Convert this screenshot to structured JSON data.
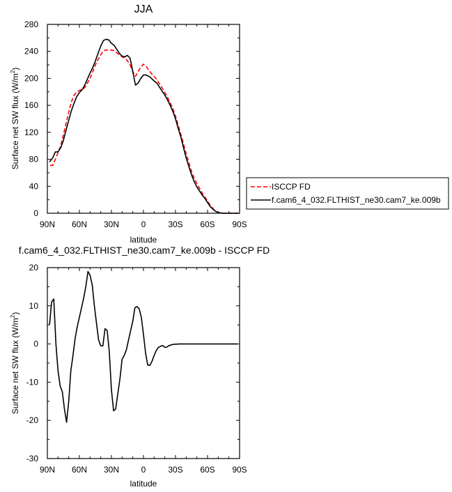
{
  "chart_data": [
    {
      "type": "line",
      "title": "JJA",
      "xlabel": "latitude",
      "ylabel": "Surface net SW flux (W/m2)",
      "ylabel_main": "Surface net SW flux (W/m",
      "ylabel_sup": "2",
      "ylabel_close": ")",
      "xlim": [
        90,
        -90
      ],
      "ylim": [
        0,
        280
      ],
      "x_ticks": [
        90,
        60,
        30,
        0,
        -30,
        -60,
        -90
      ],
      "x_tick_labels": [
        "90N",
        "60N",
        "30N",
        "0",
        "30S",
        "60S",
        "90S"
      ],
      "y_ticks": [
        0,
        40,
        80,
        120,
        160,
        200,
        240,
        280
      ],
      "y_tick_labels": [
        "0",
        "40",
        "80",
        "120",
        "160",
        "200",
        "240",
        "280"
      ],
      "grid": false,
      "legend_position": "right",
      "series": [
        {
          "name": "ISCCP FD",
          "color": "#ff0000",
          "dash": "dashed",
          "points": [
            [
              87.5,
              71
            ],
            [
              85,
              71
            ],
            [
              82.5,
              80
            ],
            [
              80,
              90
            ],
            [
              77.5,
              100
            ],
            [
              75,
              116
            ],
            [
              72.5,
              133
            ],
            [
              70,
              150
            ],
            [
              67.5,
              165
            ],
            [
              65,
              175
            ],
            [
              62.5,
              180
            ],
            [
              60,
              182
            ],
            [
              57.5,
              184
            ],
            [
              55,
              186
            ],
            [
              52.5,
              193
            ],
            [
              50,
              200
            ],
            [
              47.5,
              210
            ],
            [
              45,
              220
            ],
            [
              42.5,
              228
            ],
            [
              40,
              235
            ],
            [
              37.5,
              241
            ],
            [
              35,
              242
            ],
            [
              32.5,
              242
            ],
            [
              30,
              242
            ],
            [
              27.5,
              241
            ],
            [
              25,
              238
            ],
            [
              22.5,
              235
            ],
            [
              20,
              232
            ],
            [
              17.5,
              230
            ],
            [
              15,
              226
            ],
            [
              12.5,
              220
            ],
            [
              10,
              210
            ],
            [
              7.5,
              203
            ],
            [
              5,
              210
            ],
            [
              2.5,
              217
            ],
            [
              0,
              221
            ],
            [
              -2.5,
              218
            ],
            [
              -5,
              212
            ],
            [
              -7.5,
              207
            ],
            [
              -10,
              203
            ],
            [
              -12.5,
              198
            ],
            [
              -15,
              192
            ],
            [
              -17.5,
              186
            ],
            [
              -20,
              179
            ],
            [
              -22.5,
              172
            ],
            [
              -25,
              164
            ],
            [
              -27.5,
              155
            ],
            [
              -30,
              144
            ],
            [
              -32.5,
              131
            ],
            [
              -35,
              117
            ],
            [
              -37.5,
              103
            ],
            [
              -40,
              88
            ],
            [
              -42.5,
              75
            ],
            [
              -45,
              62
            ],
            [
              -47.5,
              52
            ],
            [
              -50,
              44
            ],
            [
              -52.5,
              37
            ],
            [
              -55,
              30
            ],
            [
              -57.5,
              24
            ],
            [
              -60,
              18
            ],
            [
              -62.5,
              12
            ],
            [
              -65,
              7
            ],
            [
              -67.5,
              3
            ],
            [
              -70,
              1
            ],
            [
              -72.5,
              0
            ],
            [
              -75,
              0
            ],
            [
              -80,
              0
            ],
            [
              -85,
              0
            ],
            [
              -89,
              0
            ]
          ]
        },
        {
          "name": "f.cam6_4_032.FLTHIST_ne30.cam7_ke.009b",
          "color": "#000000",
          "dash": "solid",
          "points": [
            [
              88,
              76
            ],
            [
              85,
              82
            ],
            [
              82.5,
              91
            ],
            [
              80,
              91
            ],
            [
              77.5,
              97
            ],
            [
              75,
              108
            ],
            [
              72.5,
              123
            ],
            [
              70,
              138
            ],
            [
              67.5,
              152
            ],
            [
              65,
              163
            ],
            [
              62.5,
              173
            ],
            [
              60,
              179
            ],
            [
              57.5,
              183
            ],
            [
              55,
              190
            ],
            [
              52.5,
              199
            ],
            [
              50,
              208
            ],
            [
              47.5,
              216
            ],
            [
              45,
              226
            ],
            [
              42.5,
              237
            ],
            [
              40,
              248
            ],
            [
              37.5,
              256
            ],
            [
              35,
              258
            ],
            [
              32.5,
              257
            ],
            [
              30,
              252
            ],
            [
              27.5,
              249
            ],
            [
              25,
              243
            ],
            [
              22.5,
              237
            ],
            [
              20,
              233
            ],
            [
              17.5,
              232
            ],
            [
              15,
              234
            ],
            [
              12.5,
              230
            ],
            [
              10,
              210
            ],
            [
              7.5,
              190
            ],
            [
              5,
              193
            ],
            [
              2.5,
              200
            ],
            [
              0,
              205
            ],
            [
              -2.5,
              205
            ],
            [
              -5,
              203
            ],
            [
              -7.5,
              200
            ],
            [
              -10,
              196
            ],
            [
              -12.5,
              193
            ],
            [
              -15,
              187
            ],
            [
              -17.5,
              181
            ],
            [
              -20,
              175
            ],
            [
              -22.5,
              168
            ],
            [
              -25,
              160
            ],
            [
              -27.5,
              151
            ],
            [
              -30,
              140
            ],
            [
              -32.5,
              126
            ],
            [
              -35,
              113
            ],
            [
              -37.5,
              97
            ],
            [
              -40,
              82
            ],
            [
              -42.5,
              69
            ],
            [
              -45,
              57
            ],
            [
              -47.5,
              47
            ],
            [
              -50,
              39
            ],
            [
              -52.5,
              33
            ],
            [
              -55,
              27
            ],
            [
              -57.5,
              22
            ],
            [
              -60,
              16
            ],
            [
              -62.5,
              10
            ],
            [
              -65,
              6
            ],
            [
              -67.5,
              3
            ],
            [
              -70,
              1
            ],
            [
              -72.5,
              0.5
            ],
            [
              -75,
              0
            ],
            [
              -80,
              0
            ],
            [
              -85,
              0
            ],
            [
              -89,
              0
            ]
          ]
        }
      ]
    },
    {
      "type": "line",
      "title": "f.cam6_4_032.FLTHIST_ne30.cam7_ke.009b - ISCCP FD",
      "xlabel": "latitude",
      "ylabel": "Surface net SW flux (W/m2)",
      "ylabel_main": "Surface net SW flux (W/m",
      "ylabel_sup": "2",
      "ylabel_close": ")",
      "xlim": [
        90,
        -90
      ],
      "ylim": [
        -30,
        20
      ],
      "x_ticks": [
        90,
        60,
        30,
        0,
        -30,
        -60,
        -90
      ],
      "x_tick_labels": [
        "90N",
        "60N",
        "30N",
        "0",
        "30S",
        "60S",
        "90S"
      ],
      "y_ticks": [
        -30,
        -20,
        -10,
        0,
        10,
        20
      ],
      "y_tick_labels": [
        "-30",
        "-20",
        "-10",
        "0",
        "10",
        "20"
      ],
      "grid": false,
      "series": [
        {
          "color": "#000000",
          "dash": "solid",
          "points": [
            [
              88,
              5
            ],
            [
              86,
              11
            ],
            [
              84,
              11.8
            ],
            [
              82,
              0
            ],
            [
              80,
              -7
            ],
            [
              78,
              -11
            ],
            [
              76,
              -12.5
            ],
            [
              74,
              -17
            ],
            [
              72,
              -20.5
            ],
            [
              70,
              -15
            ],
            [
              68,
              -7
            ],
            [
              66,
              -3
            ],
            [
              64,
              1.5
            ],
            [
              62,
              4.5
            ],
            [
              60,
              7
            ],
            [
              58,
              9.5
            ],
            [
              56,
              12
            ],
            [
              54,
              15
            ],
            [
              52,
              19
            ],
            [
              50,
              18
            ],
            [
              48,
              15.5
            ],
            [
              46,
              10
            ],
            [
              44,
              5.5
            ],
            [
              42,
              1
            ],
            [
              40,
              -0.5
            ],
            [
              38,
              -0.5
            ],
            [
              36,
              4
            ],
            [
              34,
              3.5
            ],
            [
              32,
              -2
            ],
            [
              30,
              -12
            ],
            [
              28,
              -17.5
            ],
            [
              26,
              -17
            ],
            [
              24,
              -13
            ],
            [
              22,
              -9
            ],
            [
              20,
              -4
            ],
            [
              18,
              -3
            ],
            [
              16,
              -1.5
            ],
            [
              14,
              1
            ],
            [
              12,
              3.5
            ],
            [
              10,
              6
            ],
            [
              8,
              9.5
            ],
            [
              6,
              9.8
            ],
            [
              4,
              9.2
            ],
            [
              2,
              7
            ],
            [
              0,
              2.5
            ],
            [
              -2,
              -2.5
            ],
            [
              -4,
              -5.5
            ],
            [
              -6,
              -5.6
            ],
            [
              -8,
              -4.5
            ],
            [
              -10,
              -3
            ],
            [
              -12,
              -1.7
            ],
            [
              -14,
              -0.9
            ],
            [
              -16,
              -0.6
            ],
            [
              -18,
              -0.4
            ],
            [
              -20,
              -0.9
            ],
            [
              -22,
              -0.8
            ],
            [
              -24,
              -0.4
            ],
            [
              -28,
              -0.1
            ],
            [
              -34,
              0
            ],
            [
              -40,
              0
            ],
            [
              -46,
              0
            ],
            [
              -52,
              0
            ],
            [
              -58,
              0
            ],
            [
              -64,
              0
            ],
            [
              -70,
              0
            ],
            [
              -76,
              0
            ],
            [
              -82,
              0
            ],
            [
              -88,
              0
            ]
          ]
        }
      ]
    }
  ]
}
